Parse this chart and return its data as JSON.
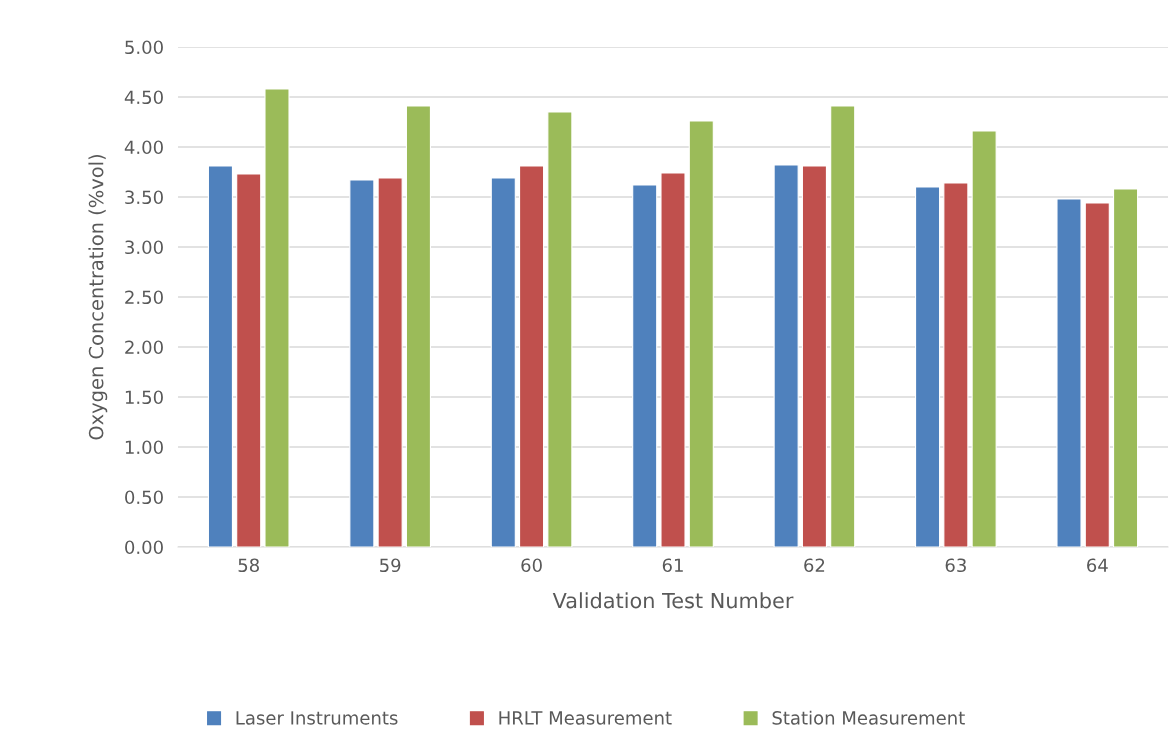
{
  "chart_data": {
    "type": "bar",
    "xlabel": "Validation Test Number",
    "ylabel": "Oxygen Concentration (%vol)",
    "categories": [
      "58",
      "59",
      "60",
      "61",
      "62",
      "63",
      "64"
    ],
    "series": [
      {
        "name": "Laser Instruments",
        "color": "#4f81bd",
        "values": [
          3.81,
          3.67,
          3.69,
          3.62,
          3.82,
          3.6,
          3.48
        ]
      },
      {
        "name": "HRLT Measurement",
        "color": "#c0504d",
        "values": [
          3.73,
          3.69,
          3.81,
          3.74,
          3.81,
          3.64,
          3.44
        ]
      },
      {
        "name": "Station Measurement",
        "color": "#9bbb59",
        "values": [
          4.58,
          4.41,
          4.35,
          4.26,
          4.41,
          4.16,
          3.58
        ]
      }
    ],
    "ylim": [
      0,
      5
    ],
    "yticks": [
      {
        "value": 0,
        "label": "0.00"
      },
      {
        "value": 0.5,
        "label": "0.50"
      },
      {
        "value": 1,
        "label": "1.00"
      },
      {
        "value": 1.5,
        "label": "1.50"
      },
      {
        "value": 2,
        "label": "2.00"
      },
      {
        "value": 2.5,
        "label": "2.50"
      },
      {
        "value": 3,
        "label": "3.00"
      },
      {
        "value": 3.5,
        "label": "3.50"
      },
      {
        "value": 4,
        "label": "4.00"
      },
      {
        "value": 4.5,
        "label": "4.50"
      },
      {
        "value": 5,
        "label": "5.00"
      }
    ],
    "grid": "y",
    "legend": "bottom"
  }
}
